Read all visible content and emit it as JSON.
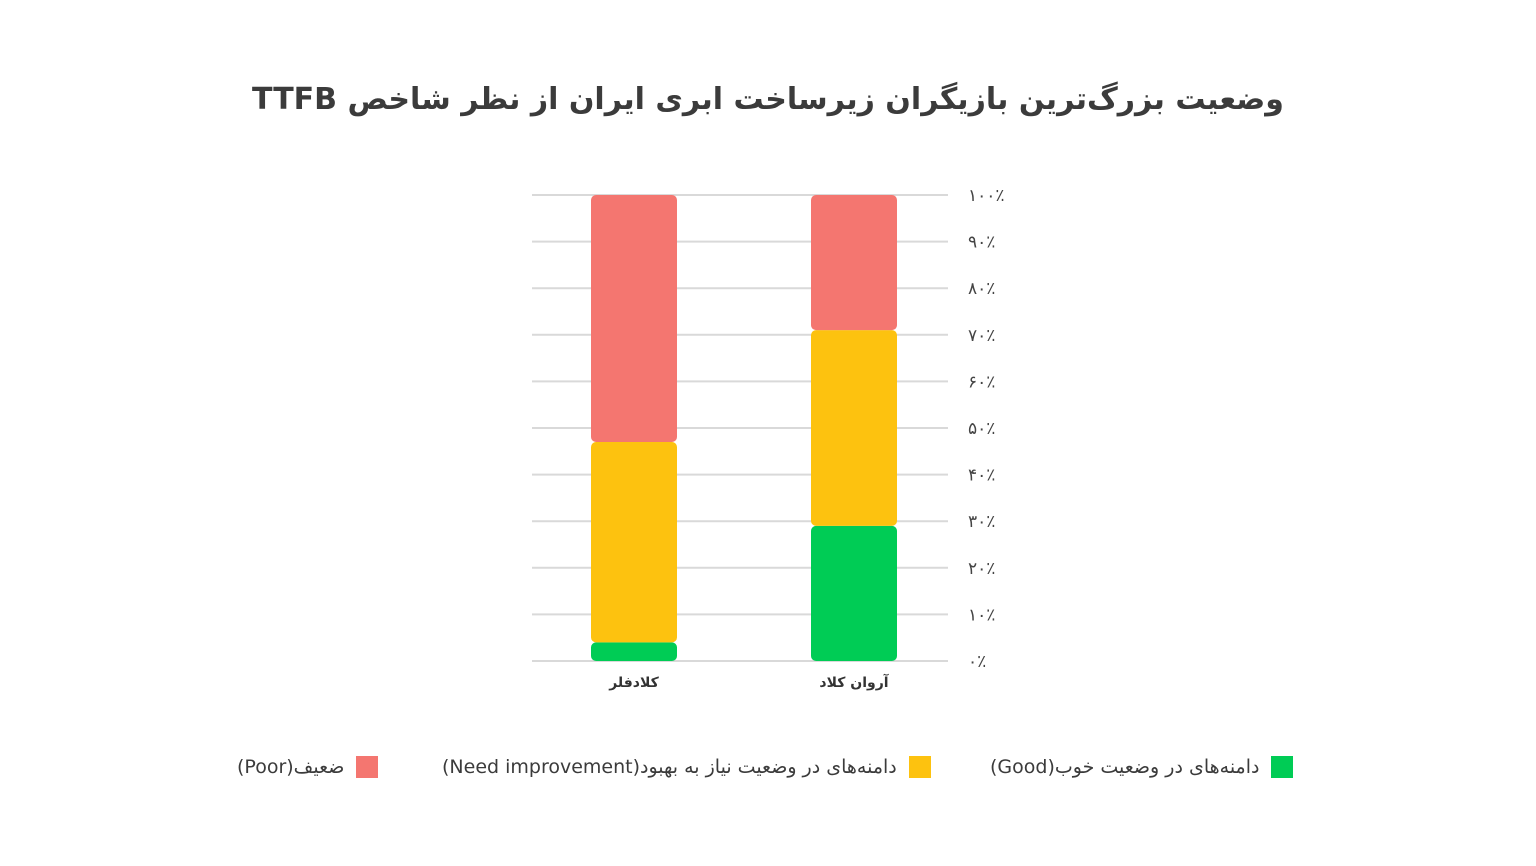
{
  "chart_data": {
    "type": "bar",
    "stacked": true,
    "title": "وضعیت بزرگ‌ترین بازیگران زیرساخت ابری ایران از نظر شاخص TTFB",
    "categories": [
      "کلادفلر",
      "آروان کلاد"
    ],
    "series": [
      {
        "name": "دامنه‌های در وضعیت خوب(Good)",
        "color": "#00cc55",
        "values": [
          4,
          29
        ]
      },
      {
        "name": "دامنه‌های در وضعیت نیاز به بهبود(Need improvement)",
        "color": "#fdc20f",
        "values": [
          43,
          42
        ]
      },
      {
        "name": "ضعیف(Poor)",
        "color": "#f47670",
        "values": [
          53,
          29
        ]
      }
    ],
    "y_ticks": [
      "۰٪",
      "۱۰٪",
      "۲۰٪",
      "۳۰٪",
      "۴۰٪",
      "۵۰٪",
      "۶۰٪",
      "۷۰٪",
      "۸۰٪",
      "۹۰٪",
      "۱۰۰٪"
    ],
    "ylim": [
      0,
      100
    ],
    "grid": true,
    "legend_position": "bottom"
  }
}
